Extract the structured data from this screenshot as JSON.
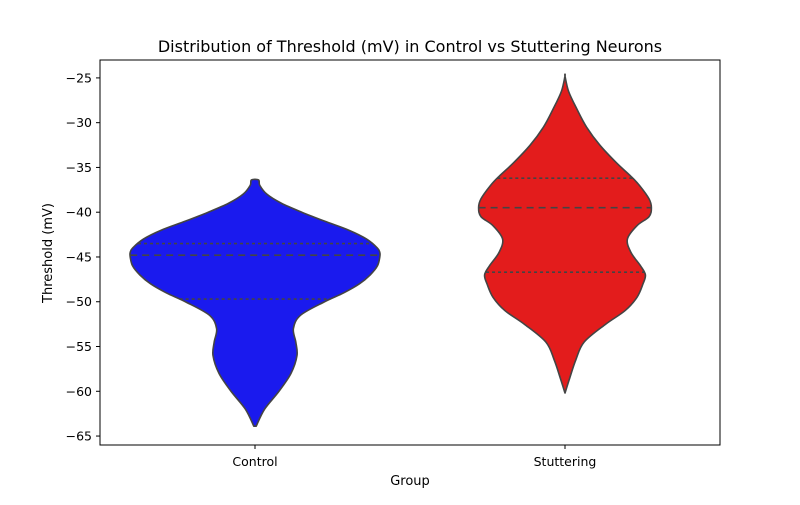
{
  "chart_data": {
    "type": "violin",
    "title": "Distribution of Threshold (mV) in Control vs Stuttering Neurons",
    "xlabel": "Group",
    "ylabel": "Threshold (mV)",
    "ylim": [
      -66,
      -23
    ],
    "yticks": [
      -65,
      -60,
      -55,
      -50,
      -45,
      -40,
      -35,
      -30,
      -25
    ],
    "ytick_labels": [
      "−65",
      "−60",
      "−55",
      "−50",
      "−45",
      "−40",
      "−35",
      "−30",
      "−25"
    ],
    "grid": false,
    "categories": [
      "Control",
      "Stuttering"
    ],
    "series": [
      {
        "category": "Control",
        "color": "#1a1aee",
        "y_min": -63.9,
        "y_max": -36.4,
        "quartiles": {
          "q1": -49.7,
          "median": -44.8,
          "q3": -43.5
        },
        "density_profile": [
          [
            -63.9,
            0.01
          ],
          [
            -62.0,
            0.08
          ],
          [
            -60.0,
            0.2
          ],
          [
            -58.0,
            0.3
          ],
          [
            -56.0,
            0.35
          ],
          [
            -54.5,
            0.34
          ],
          [
            -53.0,
            0.32
          ],
          [
            -51.5,
            0.38
          ],
          [
            -50.0,
            0.58
          ],
          [
            -49.0,
            0.74
          ],
          [
            -48.0,
            0.87
          ],
          [
            -47.0,
            0.96
          ],
          [
            -46.0,
            1.02
          ],
          [
            -45.0,
            1.04
          ],
          [
            -44.5,
            1.04
          ],
          [
            -44.0,
            1.02
          ],
          [
            -43.0,
            0.93
          ],
          [
            -42.0,
            0.78
          ],
          [
            -41.0,
            0.58
          ],
          [
            -40.0,
            0.39
          ],
          [
            -39.0,
            0.22
          ],
          [
            -38.0,
            0.1
          ],
          [
            -37.0,
            0.04
          ],
          [
            -36.4,
            0.03
          ]
        ]
      },
      {
        "category": "Stuttering",
        "color": "#e31c1c",
        "y_min": -60.2,
        "y_max": -24.8,
        "quartiles": {
          "q1": -46.7,
          "median": -39.5,
          "q3": -36.2
        },
        "density_profile": [
          [
            -60.2,
            0.0
          ],
          [
            -58.5,
            0.04
          ],
          [
            -56.5,
            0.09
          ],
          [
            -54.5,
            0.16
          ],
          [
            -52.5,
            0.34
          ],
          [
            -51.0,
            0.5
          ],
          [
            -49.5,
            0.6
          ],
          [
            -48.0,
            0.65
          ],
          [
            -47.0,
            0.67
          ],
          [
            -46.0,
            0.63
          ],
          [
            -44.5,
            0.55
          ],
          [
            -43.0,
            0.52
          ],
          [
            -41.5,
            0.6
          ],
          [
            -40.5,
            0.7
          ],
          [
            -39.5,
            0.72
          ],
          [
            -38.5,
            0.7
          ],
          [
            -37.0,
            0.62
          ],
          [
            -36.0,
            0.55
          ],
          [
            -34.5,
            0.43
          ],
          [
            -32.5,
            0.29
          ],
          [
            -30.5,
            0.18
          ],
          [
            -28.5,
            0.1
          ],
          [
            -26.5,
            0.03
          ],
          [
            -24.8,
            0.0
          ]
        ]
      }
    ]
  }
}
